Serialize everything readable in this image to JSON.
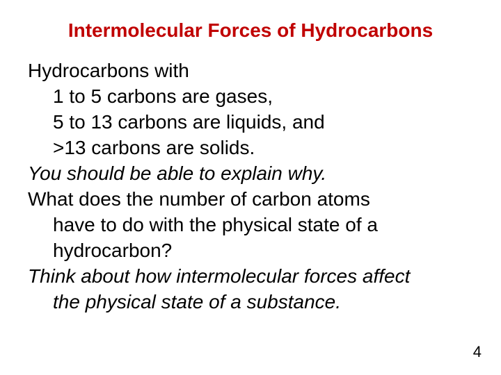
{
  "title": {
    "text": "Intermolecular Forces of Hydrocarbons",
    "color": "#c00000",
    "font_size": 28,
    "font_weight": "bold"
  },
  "body": {
    "color": "#000000",
    "font_size": 28,
    "lines": {
      "l1": "Hydrocarbons with",
      "l2": "1 to 5 carbons are gases,",
      "l3": "5 to 13 carbons are liquids, and",
      "l4": ">13 carbons are solids.",
      "l5": "You should be able to explain why.",
      "l6": "What does the number of carbon atoms",
      "l7": "have to do with the physical state of a",
      "l8": "hydrocarbon?",
      "l9": "Think about how intermolecular forces affect",
      "l10": "the physical state of a substance."
    }
  },
  "page_number": "4",
  "background_color": "#ffffff"
}
